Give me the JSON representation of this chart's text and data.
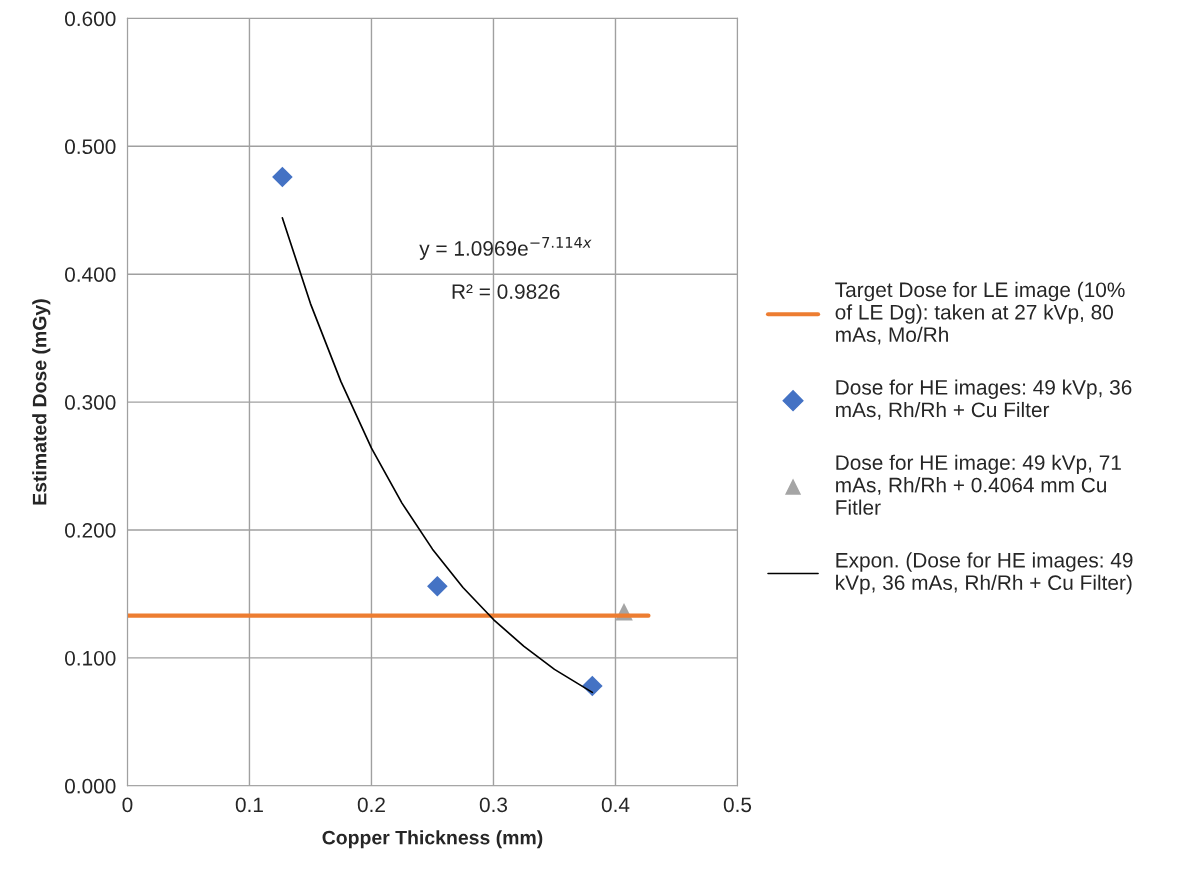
{
  "chart_data": {
    "type": "scatter",
    "xlabel": "Copper Thickness (mm)",
    "ylabel": "Estimated Dose (mGy)",
    "series": [
      {
        "name": "Target Dose for LE image (10%\nof LE Dg): taken at 27 kVp, 80\nmAs, Mo/Rh",
        "type": "line",
        "color": "#ed7d31",
        "x": [
          0,
          0.427
        ],
        "values": [
          0.133,
          0.133
        ],
        "marker": "none"
      },
      {
        "name": "Dose for HE images: 49 kVp, 36\nmAs, Rh/Rh + Cu Filter",
        "color": "#4472c4",
        "x": [
          0.127,
          0.254,
          0.381
        ],
        "values": [
          0.476,
          0.156,
          0.078
        ],
        "marker": "diamond"
      },
      {
        "name": "Dose for HE image: 49 kVp, 71\nmAs, Rh/Rh + 0.4064 mm Cu\nFitler",
        "color": "#a5a5a5",
        "x": [
          0.407
        ],
        "values": [
          0.136
        ],
        "marker": "triangle"
      },
      {
        "name": "Expon. (Dose for HE images: 49\nkVp, 36 mAs, Rh/Rh + Cu Filter)",
        "type": "line",
        "color": "#000000",
        "x": [
          0.127,
          0.15,
          0.175,
          0.2,
          0.225,
          0.25,
          0.275,
          0.3,
          0.325,
          0.35,
          0.381
        ],
        "values": [
          0.444,
          0.377,
          0.316,
          0.264,
          0.221,
          0.185,
          0.155,
          0.13,
          0.109,
          0.091,
          0.073
        ],
        "marker": "none"
      }
    ],
    "annotations": [
      "y = 1.0969e$^{−7.114x}$",
      "R² = 0.9826"
    ],
    "xlim": [
      0,
      0.5
    ],
    "xticks": [
      0,
      0.1,
      0.2,
      0.3,
      0.4,
      0.5
    ],
    "ylim": [
      0,
      0.6
    ],
    "yticks": [
      {
        "value": 0,
        "label": "0.000"
      },
      {
        "value": 0.1,
        "label": "0.100"
      },
      {
        "value": 0.2,
        "label": "0.200"
      },
      {
        "value": 0.3,
        "label": "0.300"
      },
      {
        "value": 0.4,
        "label": "0.400"
      },
      {
        "value": 0.5,
        "label": "0.500"
      },
      {
        "value": 0.6,
        "label": "0.600"
      }
    ],
    "grid": true,
    "legend": "right"
  }
}
